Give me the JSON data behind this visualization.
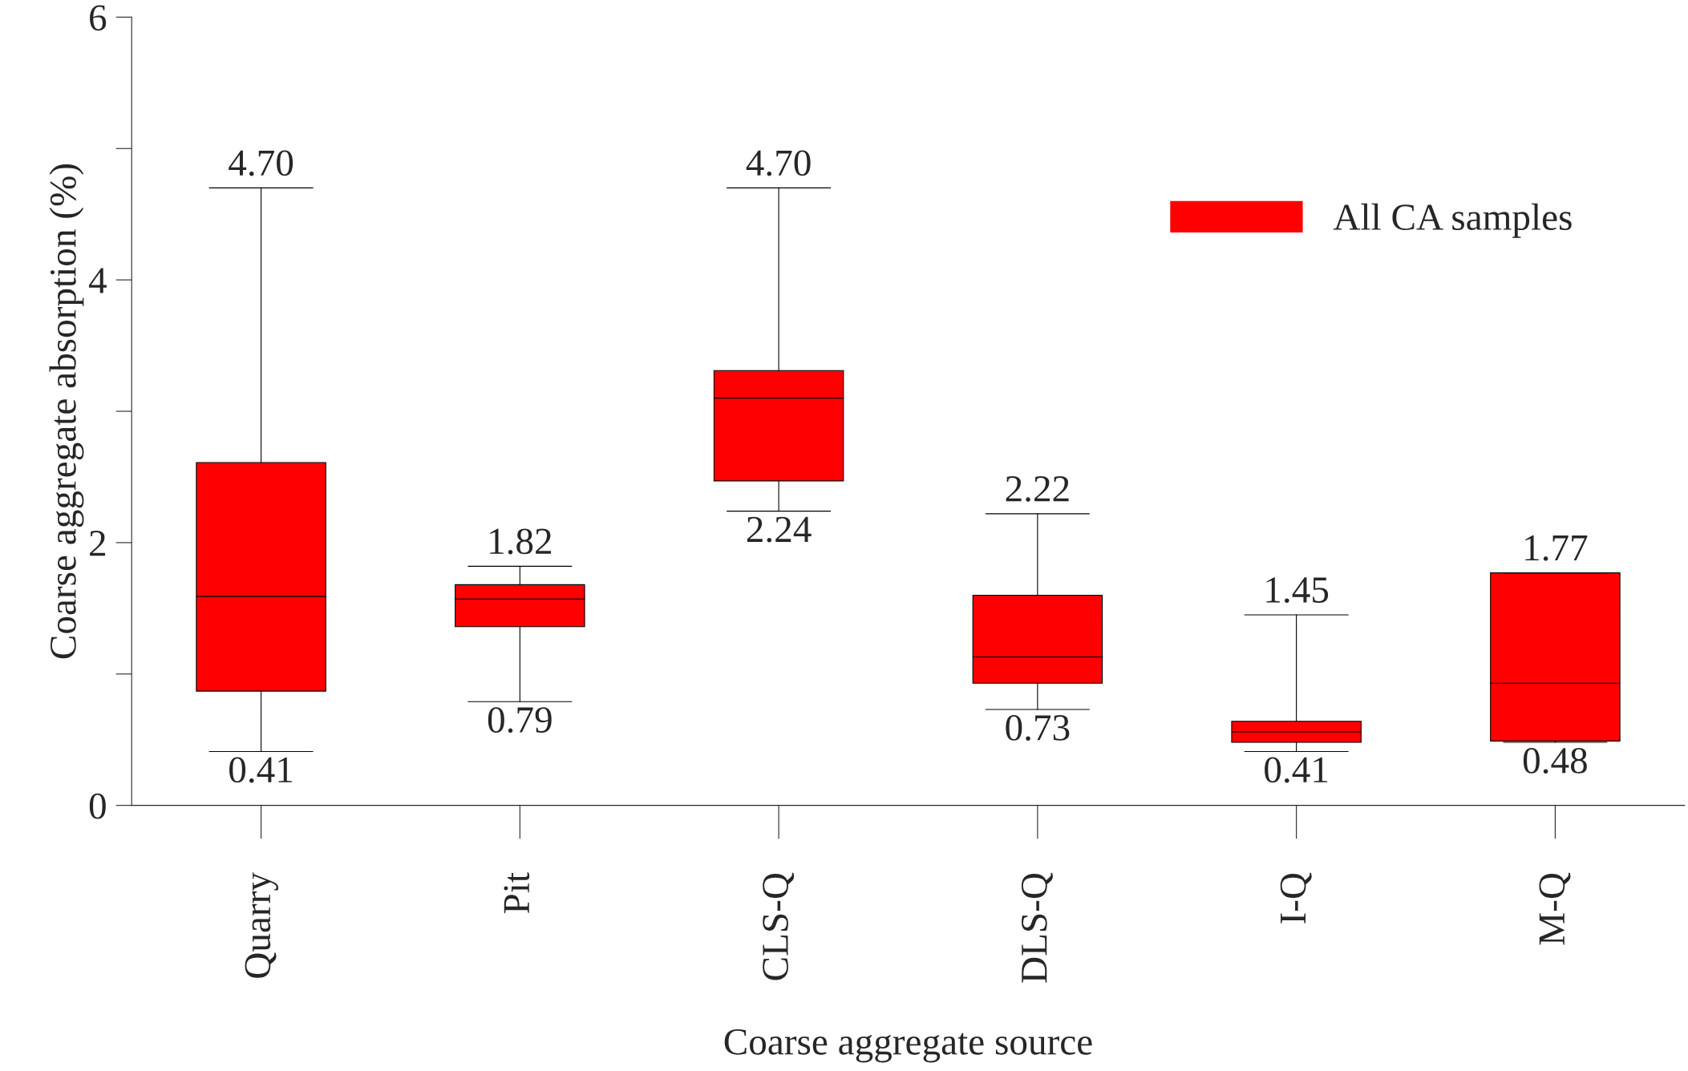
{
  "chart_data": {
    "type": "box",
    "xlabel": "Coarse aggregate source",
    "ylabel": "Coarse aggregate absorption (%)",
    "categories": [
      "Quarry",
      "Pit",
      "CLS-Q",
      "DLS-Q",
      "I-Q",
      "M-Q"
    ],
    "series": [
      {
        "name": "All CA samples",
        "color": "#ff0000",
        "boxes": [
          {
            "low": 0.41,
            "q1": 0.87,
            "median": 1.59,
            "q3": 2.61,
            "high": 4.7
          },
          {
            "low": 0.79,
            "q1": 1.36,
            "median": 1.57,
            "q3": 1.68,
            "high": 1.82
          },
          {
            "low": 2.24,
            "q1": 2.47,
            "median": 3.1,
            "q3": 3.31,
            "high": 4.7
          },
          {
            "low": 0.73,
            "q1": 0.93,
            "median": 1.13,
            "q3": 1.6,
            "high": 2.22
          },
          {
            "low": 0.41,
            "q1": 0.48,
            "median": 0.56,
            "q3": 0.64,
            "high": 1.45
          },
          {
            "low": 0.48,
            "q1": 0.49,
            "median": 0.93,
            "q3": 1.77,
            "high": 1.77
          }
        ]
      }
    ],
    "ylim": [
      0,
      6
    ],
    "yticks": [
      0,
      2,
      4,
      6
    ],
    "annotations": [
      {
        "text": "4.70",
        "x": "Quarry",
        "y": 4.7
      },
      {
        "text": "0.41",
        "x": "Quarry",
        "y": 0.41
      },
      {
        "text": "1.82",
        "x": "Pit",
        "y": 1.82
      },
      {
        "text": "0.79",
        "x": "Pit",
        "y": 0.79
      },
      {
        "text": "4.70",
        "x": "CLS-Q",
        "y": 4.7
      },
      {
        "text": "2.24",
        "x": "CLS-Q",
        "y": 2.24
      },
      {
        "text": "2.22",
        "x": "DLS-Q",
        "y": 2.22
      },
      {
        "text": "0.73",
        "x": "DLS-Q",
        "y": 0.73
      },
      {
        "text": "1.45",
        "x": "I-Q",
        "y": 1.45
      },
      {
        "text": "0.41",
        "x": "I-Q",
        "y": 0.41
      },
      {
        "text": "1.77",
        "x": "M-Q",
        "y": 1.77
      },
      {
        "text": "0.48",
        "x": "M-Q",
        "y": 0.48
      }
    ],
    "legend": "top right",
    "grid": false
  }
}
